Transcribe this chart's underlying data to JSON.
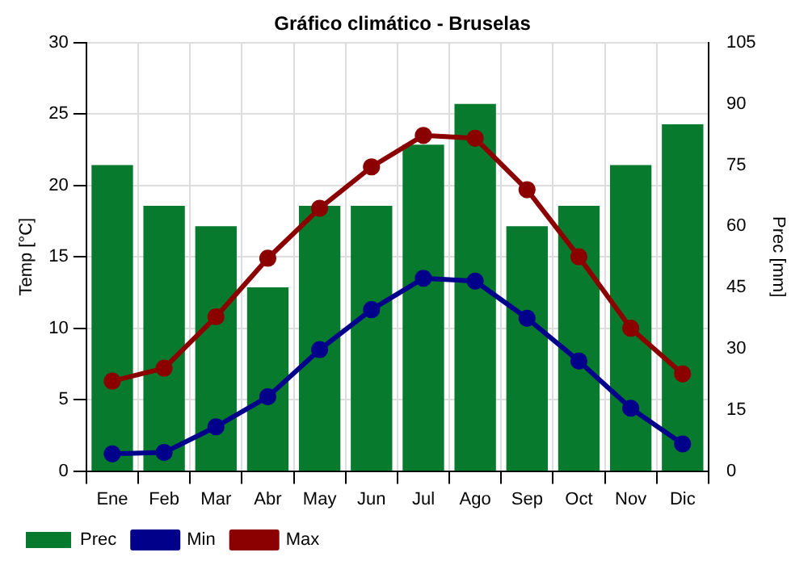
{
  "chart_data": {
    "type": "bar",
    "title": "Gráfico climático - Bruselas",
    "ylabel": "Temp [°C]",
    "y2label": "Prec [mm]",
    "categories": [
      "Ene",
      "Feb",
      "Mar",
      "Abr",
      "May",
      "Jun",
      "Jul",
      "Ago",
      "Sep",
      "Oct",
      "Nov",
      "Dic"
    ],
    "series": [
      {
        "name": "Prec",
        "axis": "y2",
        "color": "#077a2e",
        "values": [
          75,
          65,
          60,
          45,
          65,
          65,
          80,
          90,
          60,
          65,
          75,
          85
        ]
      },
      {
        "name": "Min",
        "type": "line",
        "axis": "y",
        "color": "#00008b",
        "values": [
          1.2,
          1.3,
          3.1,
          5.2,
          8.5,
          11.3,
          13.5,
          13.3,
          10.7,
          7.7,
          4.4,
          1.9
        ]
      },
      {
        "name": "Max",
        "type": "line",
        "axis": "y",
        "color": "#8b0000",
        "values": [
          6.3,
          7.2,
          10.8,
          14.9,
          18.4,
          21.3,
          23.5,
          23.3,
          19.7,
          15.0,
          10.0,
          6.8
        ]
      }
    ],
    "ylim": [
      0,
      30
    ],
    "yticks": [
      0,
      5,
      10,
      15,
      20,
      25,
      30
    ],
    "y2lim": [
      0,
      105
    ],
    "y2ticks": [
      0,
      15,
      30,
      45,
      60,
      75,
      90,
      105
    ],
    "grid": true,
    "legend": "bottom left",
    "marker": "circle",
    "line_style": "solid"
  }
}
